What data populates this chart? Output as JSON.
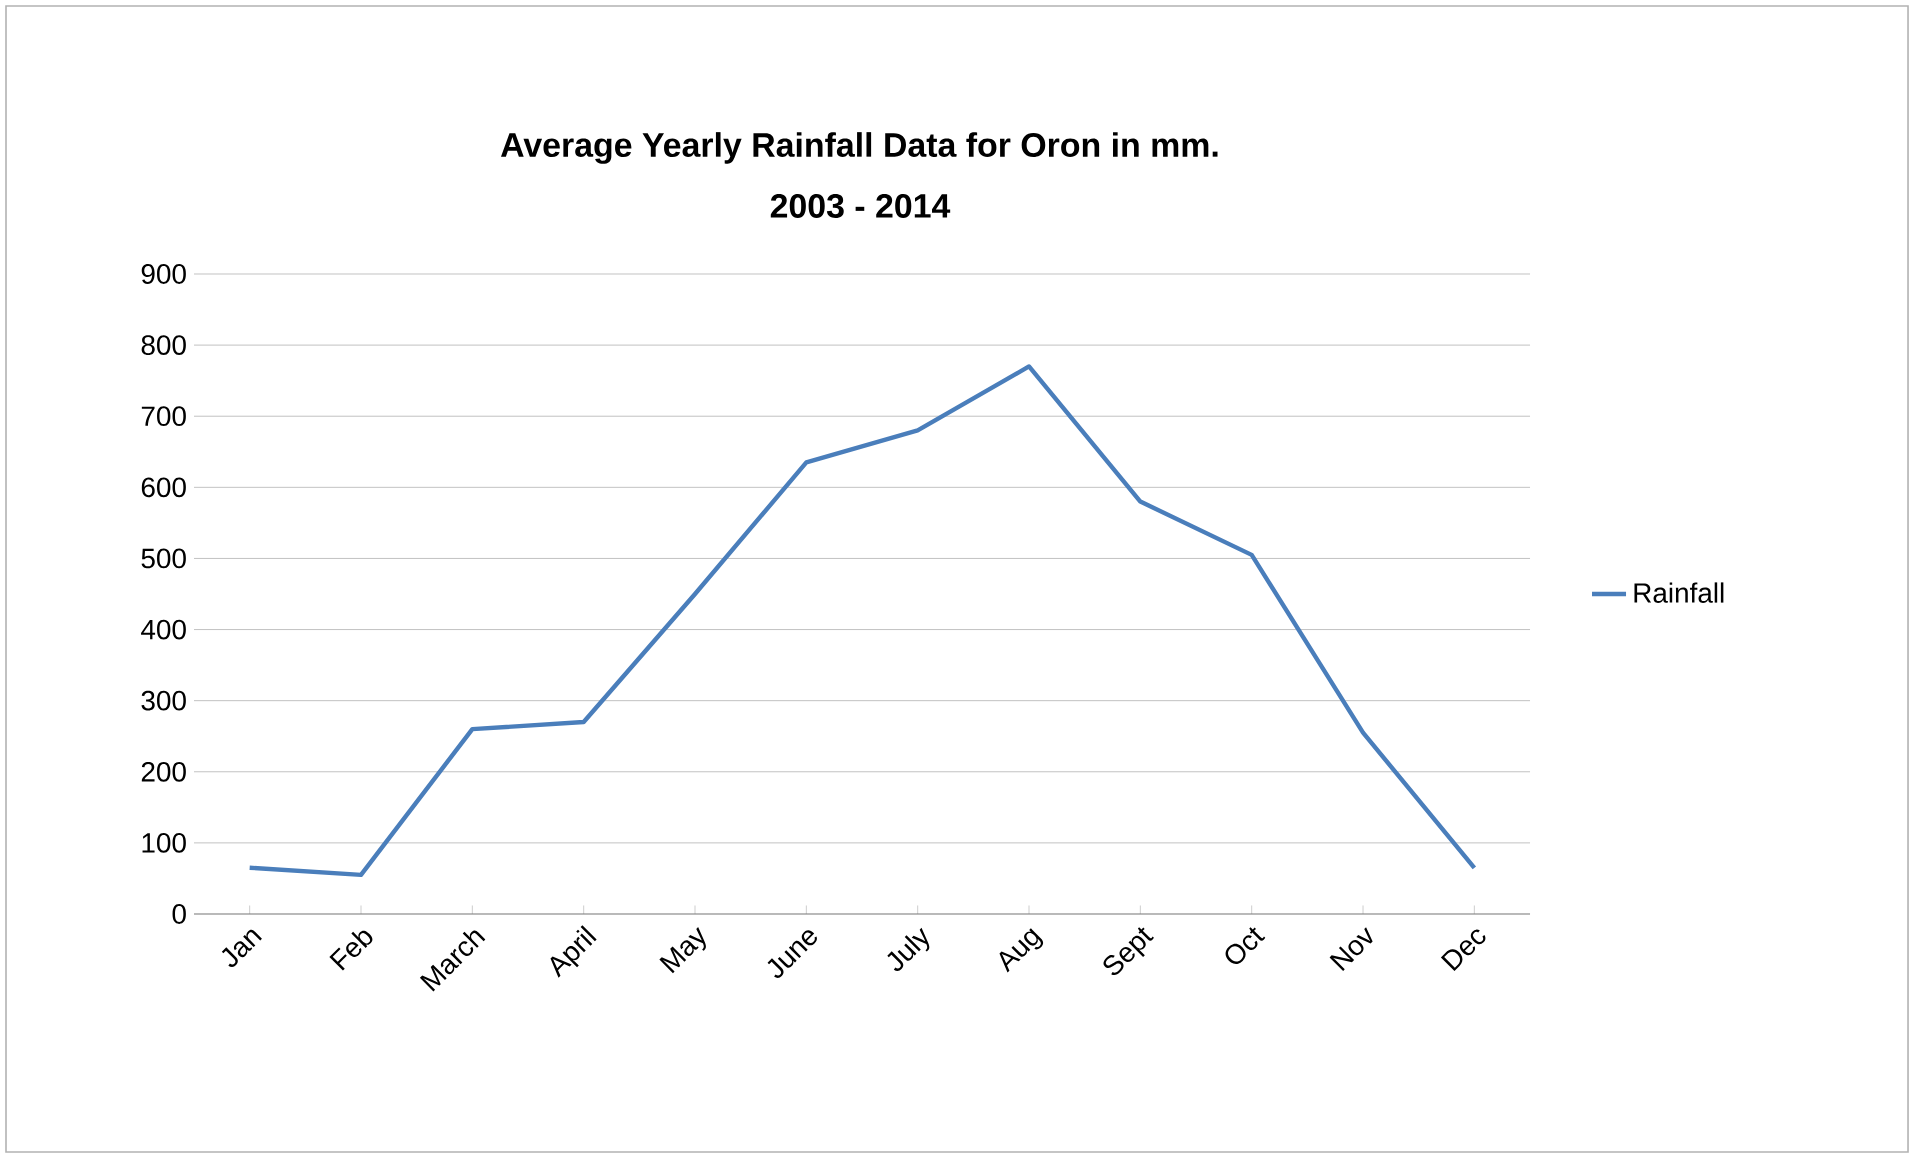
{
  "chart_data": {
    "type": "line",
    "title": "Average Yearly Rainfall Data for Oron  in mm.",
    "subtitle": "2003 - 2014",
    "categories": [
      "Jan",
      "Feb",
      "March",
      "April",
      "May",
      "June",
      "July",
      "Aug",
      "Sept",
      "Oct",
      "Nov",
      "Dec"
    ],
    "series": [
      {
        "name": "Rainfall",
        "color": "#4a7ebb",
        "values": [
          65,
          55,
          260,
          270,
          450,
          635,
          680,
          770,
          580,
          505,
          255,
          65
        ]
      }
    ],
    "ylim": [
      0,
      900
    ],
    "yticks": [
      0,
      100,
      200,
      300,
      400,
      500,
      600,
      700,
      800,
      900
    ],
    "grid": "y",
    "legend": "right",
    "marker": "none",
    "line_style": "solid"
  }
}
